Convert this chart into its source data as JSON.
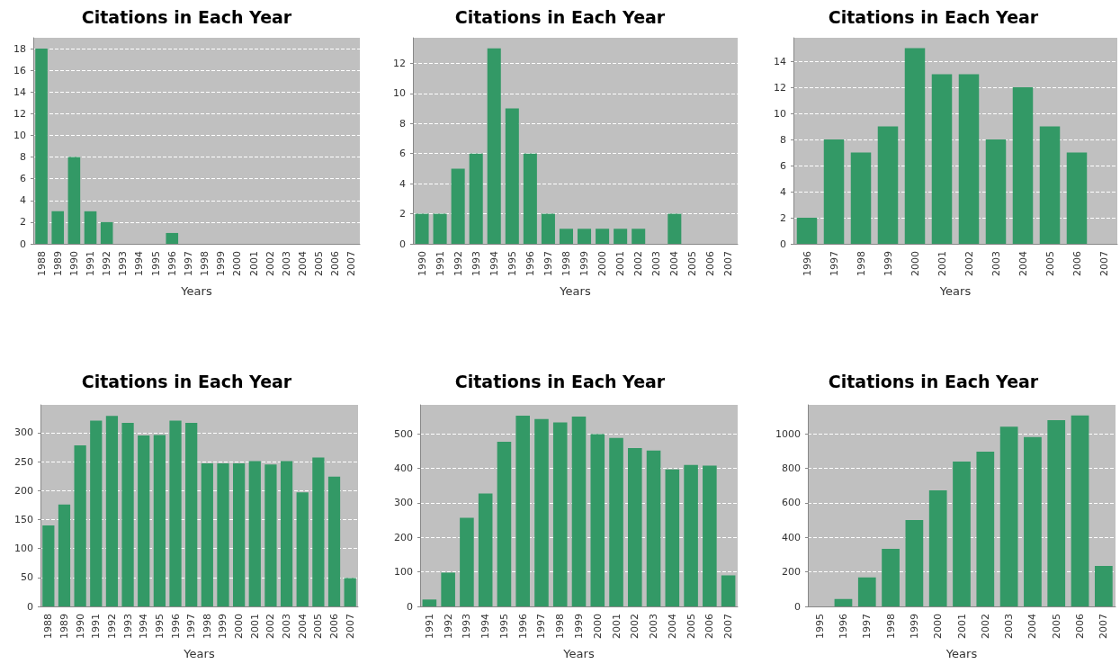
{
  "chart_data": [
    {
      "type": "bar",
      "title": "Citations in Each Year",
      "xlabel": "Years",
      "categories": [
        "1988",
        "1989",
        "1990",
        "1991",
        "1992",
        "1993",
        "1994",
        "1995",
        "1996",
        "1997",
        "1998",
        "1999",
        "2000",
        "2001",
        "2002",
        "2003",
        "2004",
        "2005",
        "2006",
        "2007"
      ],
      "values": [
        18,
        3,
        8,
        3,
        2,
        0,
        0,
        0,
        1,
        0,
        0,
        0,
        0,
        0,
        0,
        0,
        0,
        0,
        0,
        0
      ],
      "color": "#339966",
      "ylim": [
        0,
        19
      ],
      "yticks": [
        0,
        2,
        4,
        6,
        8,
        10,
        12,
        14,
        16,
        18
      ],
      "grid": "y"
    },
    {
      "type": "bar",
      "title": "Citations in Each Year",
      "xlabel": "Years",
      "categories": [
        "1990",
        "1991",
        "1992",
        "1993",
        "1994",
        "1995",
        "1996",
        "1997",
        "1998",
        "1999",
        "2000",
        "2001",
        "2002",
        "2003",
        "2004",
        "2005",
        "2006",
        "2007"
      ],
      "values": [
        2,
        2,
        5,
        6,
        13,
        9,
        6,
        2,
        1,
        1,
        1,
        1,
        1,
        0,
        2,
        0,
        0,
        0
      ],
      "color": "#339966",
      "ylim": [
        0,
        13.7
      ],
      "yticks": [
        0,
        2,
        4,
        6,
        8,
        10,
        12
      ],
      "grid": "y"
    },
    {
      "type": "bar",
      "title": "Citations in Each Year",
      "xlabel": "Years",
      "categories": [
        "1996",
        "1997",
        "1998",
        "1999",
        "2000",
        "2001",
        "2002",
        "2003",
        "2004",
        "2005",
        "2006",
        "2007"
      ],
      "values": [
        2,
        8,
        7,
        9,
        15,
        13,
        13,
        8,
        12,
        9,
        7,
        0
      ],
      "color": "#339966",
      "ylim": [
        0,
        15.8
      ],
      "yticks": [
        0,
        2,
        4,
        6,
        8,
        10,
        12,
        14
      ],
      "grid": "y"
    },
    {
      "type": "bar",
      "title": "Citations in Each Year",
      "xlabel": "Years",
      "categories": [
        "1988",
        "1989",
        "1990",
        "1991",
        "1992",
        "1993",
        "1994",
        "1995",
        "1996",
        "1997",
        "1998",
        "1999",
        "2000",
        "2001",
        "2002",
        "2003",
        "2004",
        "2005",
        "2006",
        "2007"
      ],
      "values": [
        140,
        176,
        278,
        321,
        329,
        317,
        295,
        296,
        321,
        317,
        247,
        247,
        247,
        251,
        245,
        251,
        197,
        257,
        224,
        49
      ],
      "color": "#339966",
      "ylim": [
        0,
        348
      ],
      "yticks": [
        0,
        50,
        100,
        150,
        200,
        250,
        300
      ],
      "grid": "y"
    },
    {
      "type": "bar",
      "title": "Citations in Each Year",
      "xlabel": "Years",
      "categories": [
        "1991",
        "1992",
        "1993",
        "1994",
        "1995",
        "1996",
        "1997",
        "1998",
        "1999",
        "2000",
        "2001",
        "2002",
        "2003",
        "2004",
        "2005",
        "2006",
        "2007"
      ],
      "values": [
        20,
        98,
        257,
        327,
        477,
        553,
        543,
        533,
        550,
        499,
        488,
        459,
        452,
        397,
        410,
        408,
        90
      ],
      "color": "#339966",
      "ylim": [
        0,
        584
      ],
      "yticks": [
        0,
        100,
        200,
        300,
        400,
        500
      ],
      "grid": "y"
    },
    {
      "type": "bar",
      "title": "Citations in Each Year",
      "xlabel": "Years",
      "categories": [
        "1995",
        "1996",
        "1997",
        "1998",
        "1999",
        "2000",
        "2001",
        "2002",
        "2003",
        "2004",
        "2005",
        "2006",
        "2007"
      ],
      "values": [
        0,
        43,
        168,
        334,
        500,
        673,
        840,
        897,
        1042,
        981,
        1080,
        1107,
        235
      ],
      "color": "#339966",
      "ylim": [
        0,
        1168
      ],
      "yticks": [
        0,
        200,
        400,
        600,
        800,
        1000
      ],
      "grid": "y"
    }
  ]
}
